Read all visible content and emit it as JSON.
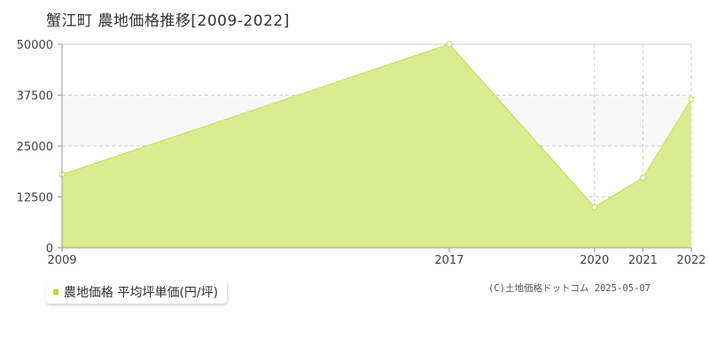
{
  "title": "蟹江町 農地価格推移[2009-2022]",
  "legend": {
    "label": "農地価格 平均坪単価(円/坪)"
  },
  "copyright": "(C)土地価格ドットコム 2025-05-07",
  "colors": {
    "area_fill": "#dbeb91",
    "area_line": "#c5e05c",
    "band": "#f8f8f8",
    "grid": "#cccccc",
    "axis": "#999999",
    "swatch": "#b5d63a"
  },
  "chart_data": {
    "type": "area",
    "x": [
      "2009",
      "2017",
      "2020",
      "2021",
      "2022"
    ],
    "series": [
      {
        "name": "農地価格 平均坪単価(円/坪)",
        "values": [
          18000,
          50000,
          10000,
          17200,
          36500
        ]
      }
    ],
    "yticks": [
      "0",
      "12500",
      "25000",
      "37500",
      "50000"
    ],
    "ylim": [
      0,
      50000
    ],
    "grid": true,
    "legend_position": "bottom-left"
  }
}
